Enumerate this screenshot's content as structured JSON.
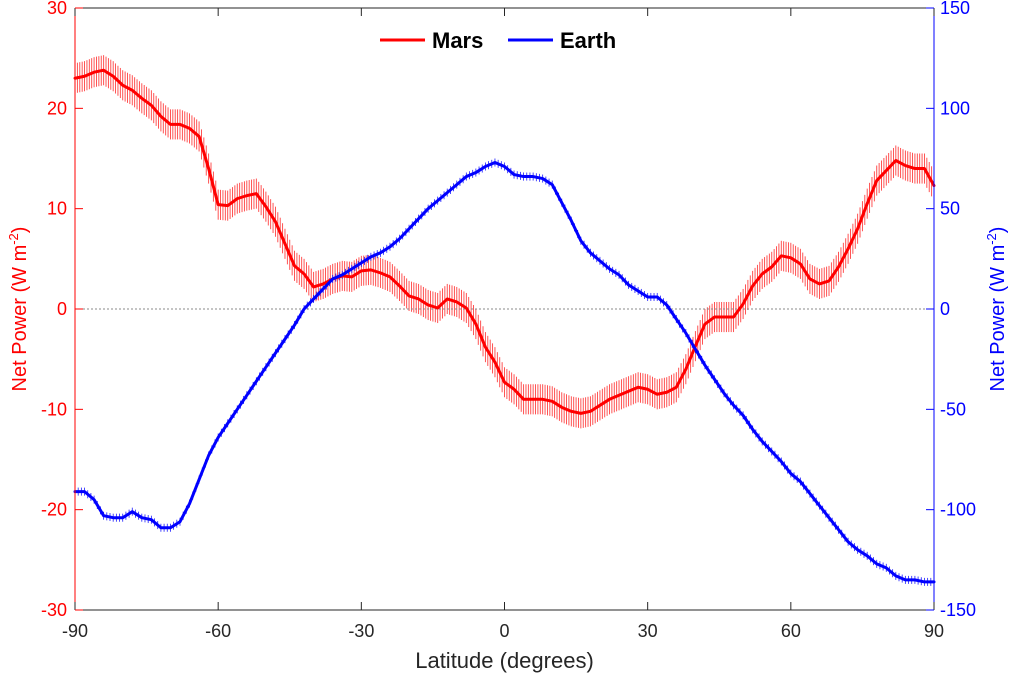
{
  "chart_data": {
    "type": "line",
    "xlabel": "Latitude (degrees)",
    "ylabel_left": "Net Power (W m",
    "ylabel_right": "Net Power (W m",
    "ylabel_sup": "-2",
    "ylabel_close": ")",
    "xlim": [
      -90,
      90
    ],
    "ylim_left": [
      -30,
      30
    ],
    "ylim_right": [
      -150,
      150
    ],
    "x_ticks": [
      "-90",
      "-60",
      "-30",
      "0",
      "30",
      "60",
      "90"
    ],
    "y_ticks_left": [
      "-30",
      "-20",
      "-10",
      "0",
      "10",
      "20",
      "30"
    ],
    "y_ticks_right": [
      "-150",
      "-100",
      "-50",
      "0",
      "50",
      "100",
      "150"
    ],
    "zero_line": true,
    "legend_position": "top-center",
    "colors": {
      "mars": "#ff0000",
      "earth": "#0000ff",
      "left_axis": "#ff0000",
      "right_axis": "#0000ff",
      "x_axis": "#262626"
    },
    "series": [
      {
        "name": "Mars",
        "axis": "left",
        "error": 1.5,
        "x": [
          -90,
          -88,
          -86,
          -84,
          -82,
          -80,
          -78,
          -76,
          -74,
          -72,
          -70,
          -68,
          -66,
          -64,
          -62,
          -60,
          -58,
          -56,
          -54,
          -52,
          -50,
          -48,
          -46,
          -44,
          -42,
          -40,
          -38,
          -36,
          -34,
          -32,
          -30,
          -28,
          -26,
          -24,
          -22,
          -20,
          -18,
          -16,
          -14,
          -12,
          -10,
          -8,
          -6,
          -4,
          -2,
          0,
          2,
          4,
          6,
          8,
          10,
          12,
          14,
          16,
          18,
          20,
          22,
          24,
          26,
          28,
          30,
          32,
          34,
          36,
          38,
          40,
          42,
          44,
          46,
          48,
          50,
          52,
          54,
          56,
          58,
          60,
          62,
          64,
          66,
          68,
          70,
          72,
          74,
          76,
          78,
          80,
          82,
          84,
          86,
          88,
          90
        ],
        "values": [
          23.0,
          23.2,
          23.6,
          23.8,
          23.2,
          22.3,
          21.8,
          21.0,
          20.3,
          19.2,
          18.4,
          18.4,
          18.0,
          17.2,
          14.0,
          10.4,
          10.3,
          11.0,
          11.3,
          11.5,
          10.2,
          8.7,
          6.5,
          4.3,
          3.5,
          2.2,
          2.5,
          3.0,
          3.3,
          3.2,
          3.8,
          3.9,
          3.6,
          3.2,
          2.3,
          1.3,
          1.0,
          0.4,
          0.1,
          1.0,
          0.7,
          0.1,
          -1.5,
          -3.8,
          -5.3,
          -7.3,
          -8.0,
          -9.0,
          -9.0,
          -9.0,
          -9.2,
          -9.8,
          -10.2,
          -10.4,
          -10.2,
          -9.6,
          -9.0,
          -8.6,
          -8.2,
          -7.8,
          -8.0,
          -8.5,
          -8.3,
          -7.8,
          -6.0,
          -3.7,
          -1.5,
          -0.8,
          -0.8,
          -0.8,
          0.5,
          2.3,
          3.5,
          4.2,
          5.3,
          5.1,
          4.5,
          3.0,
          2.5,
          2.8,
          4.2,
          6.0,
          8.0,
          10.5,
          12.8,
          13.8,
          14.8,
          14.3,
          14.0,
          14.0,
          12.3
        ]
      },
      {
        "name": "Earth",
        "axis": "right",
        "error": 2,
        "x": [
          -90,
          -88,
          -86,
          -84,
          -82,
          -80,
          -78,
          -76,
          -74,
          -72,
          -70,
          -68,
          -66,
          -64,
          -62,
          -60,
          -58,
          -56,
          -54,
          -52,
          -50,
          -48,
          -46,
          -44,
          -42,
          -40,
          -38,
          -36,
          -34,
          -32,
          -30,
          -28,
          -26,
          -24,
          -22,
          -20,
          -18,
          -16,
          -14,
          -12,
          -10,
          -8,
          -6,
          -4,
          -2,
          0,
          2,
          4,
          6,
          8,
          10,
          12,
          14,
          16,
          18,
          20,
          22,
          24,
          26,
          28,
          30,
          32,
          34,
          36,
          38,
          40,
          42,
          44,
          46,
          48,
          50,
          52,
          54,
          56,
          58,
          60,
          62,
          64,
          66,
          68,
          70,
          72,
          74,
          76,
          78,
          80,
          82,
          84,
          86,
          88,
          90
        ],
        "values": [
          -91,
          -91,
          -95,
          -103,
          -104,
          -104,
          -101,
          -104,
          -105,
          -109,
          -109,
          -106,
          -97,
          -85,
          -73,
          -64,
          -57,
          -50,
          -43,
          -36,
          -29,
          -22,
          -15,
          -8,
          0,
          5,
          10,
          15,
          17,
          20,
          23,
          26,
          28,
          31,
          35,
          40,
          45,
          50,
          54,
          58,
          62,
          66,
          68,
          71,
          73,
          71,
          67,
          66,
          66,
          65,
          62,
          53,
          44,
          34,
          28,
          24,
          20,
          17,
          12,
          9,
          6,
          6,
          2,
          -5,
          -12,
          -20,
          -28,
          -35,
          -42,
          -48,
          -53,
          -60,
          -66,
          -71,
          -76,
          -82,
          -86,
          -92,
          -98,
          -104,
          -110,
          -116,
          -120,
          -123,
          -127,
          -129,
          -133,
          -135,
          -135,
          -136,
          -136
        ]
      }
    ]
  }
}
